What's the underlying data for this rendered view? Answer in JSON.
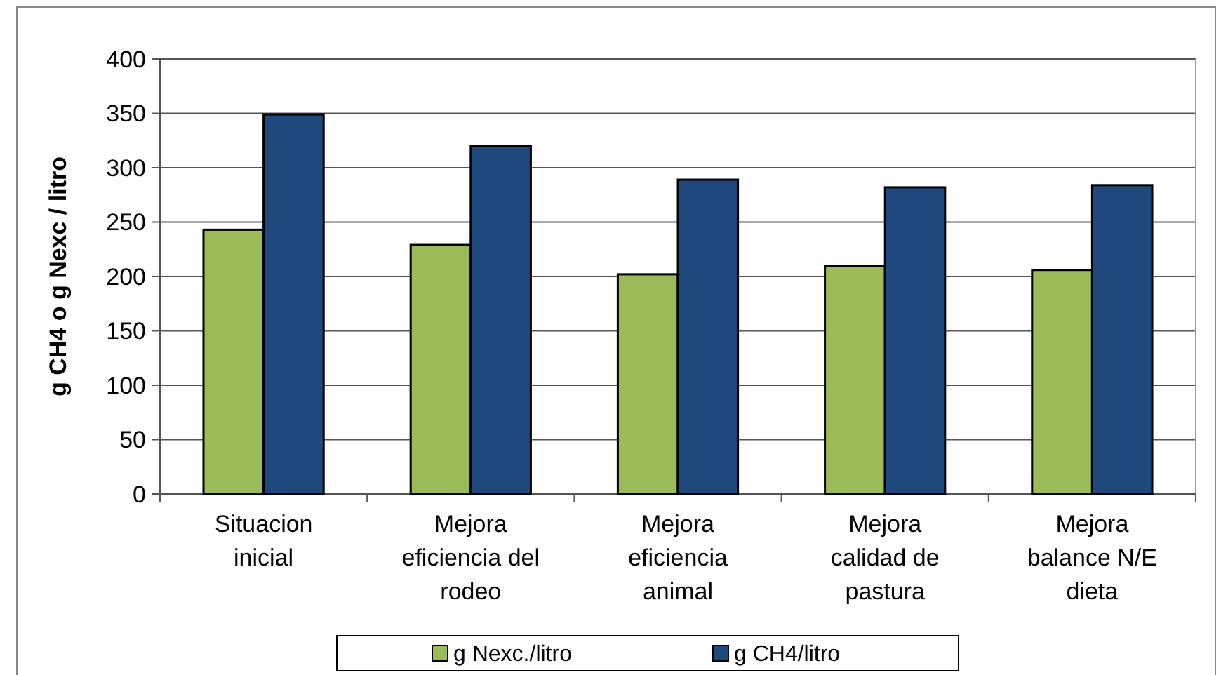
{
  "chart_data": {
    "type": "bar",
    "ylabel": "g CH4 o g Nexc / litro",
    "categories": [
      "Situacion\ninicial",
      "Mejora\neficiencia del\nrodeo",
      "Mejora\neficiencia\nanimal",
      "Mejora\ncalidad de\npastura",
      "Mejora\nbalance N/E\ndieta"
    ],
    "series": [
      {
        "name": "g Nexc./litro",
        "color": "#9bbb59",
        "values": [
          243,
          229,
          202,
          210,
          206
        ]
      },
      {
        "name": "g CH4/litro",
        "color": "#1f497d",
        "values": [
          349,
          320,
          289,
          282,
          284
        ]
      }
    ],
    "ylim": [
      0,
      400
    ],
    "yticks": [
      0,
      50,
      100,
      150,
      200,
      250,
      300,
      350,
      400
    ],
    "grid": "y",
    "legend": "bottom"
  }
}
